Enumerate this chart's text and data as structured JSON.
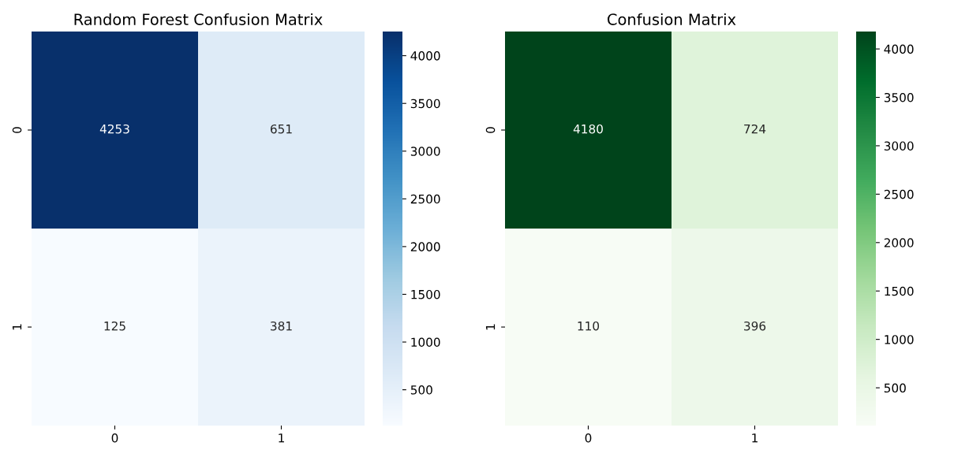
{
  "chart_data": [
    {
      "type": "heatmap",
      "title": "Random Forest Confusion Matrix",
      "categories": [
        "0",
        "1"
      ],
      "y_categories": [
        "0",
        "1"
      ],
      "cells": [
        [
          4253,
          651
        ],
        [
          125,
          381
        ]
      ],
      "clim": [
        125,
        4253
      ],
      "cticks": [
        500,
        1000,
        1500,
        2000,
        2500,
        3000,
        3500,
        4000
      ],
      "data_labels": true
    },
    {
      "type": "heatmap",
      "title": "Confusion Matrix",
      "categories": [
        "0",
        "1"
      ],
      "y_categories": [
        "0",
        "1"
      ],
      "cells": [
        [
          4180,
          724
        ],
        [
          110,
          396
        ]
      ],
      "clim": [
        110,
        4180
      ],
      "cticks": [
        500,
        1000,
        1500,
        2000,
        2500,
        3000,
        3500,
        4000
      ],
      "data_labels": true
    }
  ]
}
